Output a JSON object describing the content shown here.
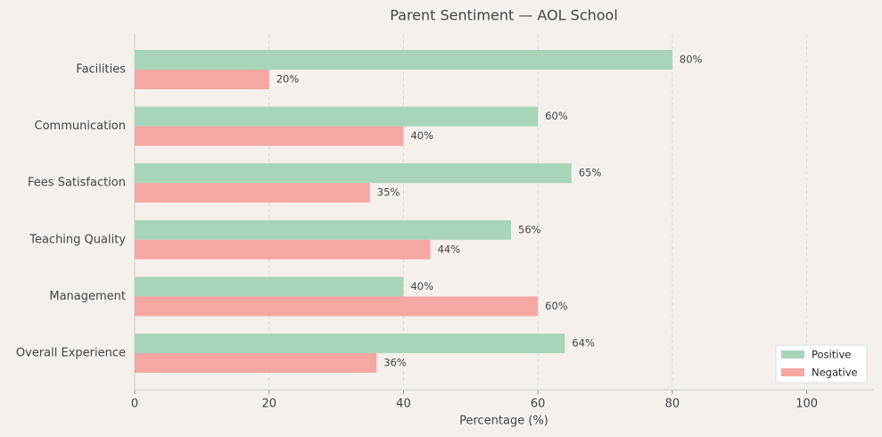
{
  "chart_data": {
    "type": "hbar",
    "title": "Parent Sentiment — AOL School",
    "xlabel": "Percentage (%)",
    "categories": [
      "Facilities",
      "Communication",
      "Fees Satisfaction",
      "Teaching Quality",
      "Management",
      "Overall Experience"
    ],
    "series": [
      {
        "name": "Positive",
        "color": "#a8d5ba",
        "values": [
          80,
          60,
          65,
          56,
          40,
          64
        ],
        "value_labels": [
          "80%",
          "60%",
          "65%",
          "56%",
          "40%",
          "64%"
        ]
      },
      {
        "name": "Negative",
        "color": "#f4a7a3",
        "values": [
          20,
          40,
          35,
          44,
          60,
          36
        ],
        "value_labels": [
          "20%",
          "40%",
          "35%",
          "44%",
          "60%",
          "36%"
        ]
      }
    ],
    "xlim": [
      0,
      110
    ],
    "xticks": [
      0,
      20,
      40,
      60,
      80,
      100
    ],
    "grid": true,
    "legend": "lower right"
  }
}
